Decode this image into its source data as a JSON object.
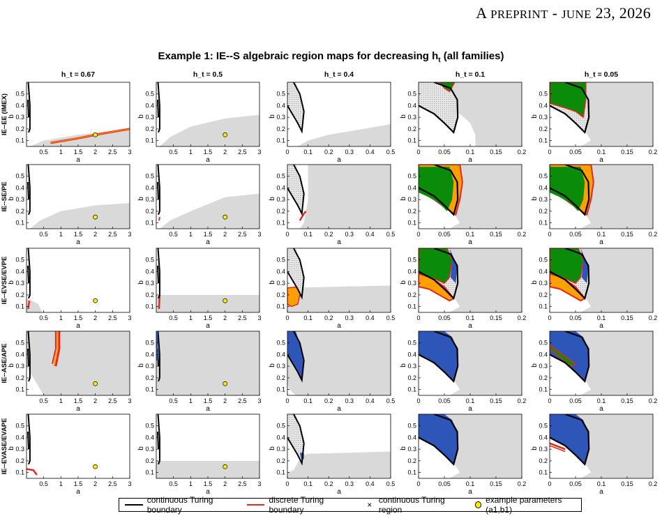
{
  "header": {
    "prefix": "A",
    "preprint": "PREPRINT",
    "sep": " - ",
    "month": "JUNE",
    "date": "23, 2026"
  },
  "figure_title_pre": "Example 1: IE--S algebraic region maps for decreasing h",
  "figure_title_sub": "t",
  "figure_title_post": " (all families)",
  "colors": {
    "gray": "#d9d9d9",
    "green": "#0a8c0a",
    "orange": "#ff9f00",
    "blue": "#2e55b8",
    "red": "#e8261c",
    "black": "#000000",
    "yellow": "#ffee00"
  },
  "chart_data": {
    "type": "region-map-grid",
    "column_titles": [
      "h_t = 0.67",
      "h_t = 0.5",
      "h_t = 0.4",
      "h_t = 0.1",
      "h_t = 0.05"
    ],
    "row_labels": [
      "IE--EE (IMEX)",
      "IE--SE/PE",
      "IE--EVSE/EVPE",
      "IE--ASE/APE",
      "IE--EVASE/EVAPE"
    ],
    "xlabel": "a",
    "ylabel": "b",
    "xlim_by_column": [
      [
        0,
        3
      ],
      [
        0,
        3
      ],
      [
        0,
        0.5
      ],
      [
        0,
        0.2
      ],
      [
        0,
        0.2
      ]
    ],
    "ylim": [
      0.05,
      0.6
    ],
    "xticks_by_column": [
      [
        "0.5",
        "1",
        "1.5",
        "2",
        "2.5",
        "3"
      ],
      [
        "0.5",
        "1",
        "1.5",
        "2",
        "2.5",
        "3"
      ],
      [
        "0",
        "0.1",
        "0.2",
        "0.3",
        "0.4",
        "0.5"
      ],
      [
        "0",
        "0.05",
        "0.1",
        "0.15",
        "0.2"
      ],
      [
        "0",
        "0.05",
        "0.1",
        "0.15",
        "0.2"
      ]
    ],
    "yticks": [
      "0.1",
      "0.2",
      "0.3",
      "0.4",
      "0.5"
    ],
    "example_parameters": {
      "a": 2,
      "b": 0.15
    },
    "legend": [
      {
        "label": "continuous Turing boundary",
        "kind": "line",
        "color": "#000000"
      },
      {
        "label": "discrete Turing boundary",
        "kind": "line",
        "color": "#e8261c"
      },
      {
        "label": "continuous Turing region",
        "kind": "marker-x"
      },
      {
        "label": "example parameters (a1,b1)",
        "kind": "marker-dot",
        "color": "#ffee00"
      }
    ],
    "legend_position": "bottom"
  }
}
